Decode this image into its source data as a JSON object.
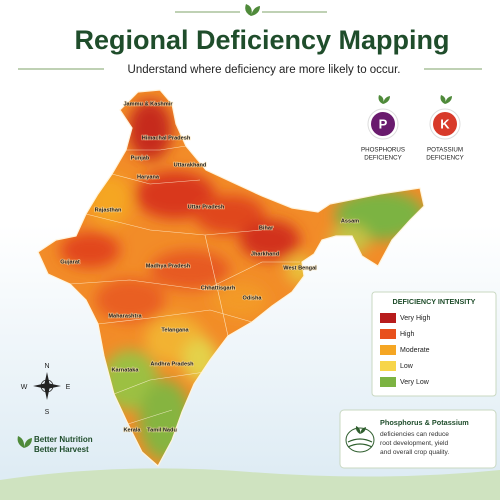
{
  "header": {
    "title": "Regional Deficiency Mapping",
    "subtitle": "Understand where deficiency are more likely to occur."
  },
  "nutrients": [
    {
      "symbol": "P",
      "lines": [
        "PHOSPHORUS",
        "DEFICIENCY"
      ],
      "color": "#6a1b6e"
    },
    {
      "symbol": "K",
      "lines": [
        "POTASSIUM",
        "DEFICIENCY"
      ],
      "color": "#d83a2a"
    }
  ],
  "regions": [
    "Jammu & Kashmir",
    "Himachal Pradesh",
    "Punjab",
    "Uttarakhand",
    "Haryana",
    "Rajasthan",
    "Uttar Pradesh",
    "Assam",
    "Bihar",
    "Gujarat",
    "Madhya Pradesh",
    "Jharkhand",
    "West Bengal",
    "Chhattisgarh",
    "Odisha",
    "Maharashtra",
    "Telangana",
    "Andhra Pradesh",
    "Karnataka",
    "Kerala",
    "Tamil Nadu"
  ],
  "legend": {
    "title": "DEFICIENCY INTENSITY",
    "items": [
      {
        "label": "Very High",
        "color": "#b71c1c"
      },
      {
        "label": "High",
        "color": "#e8501c"
      },
      {
        "label": "Moderate",
        "color": "#f5a623"
      },
      {
        "label": "Low",
        "color": "#f7d54a"
      },
      {
        "label": "Very Low",
        "color": "#7cb342"
      }
    ]
  },
  "compass": {
    "north": "N",
    "east": "E",
    "south": "S",
    "west": "W"
  },
  "tagline": [
    "Better Nutrition",
    "Better Harvest"
  ],
  "info": {
    "title": "Phosphorus & Potassium",
    "lines": [
      "deficiencies can reduce",
      "root development, yield",
      "and overall crop quality."
    ]
  }
}
